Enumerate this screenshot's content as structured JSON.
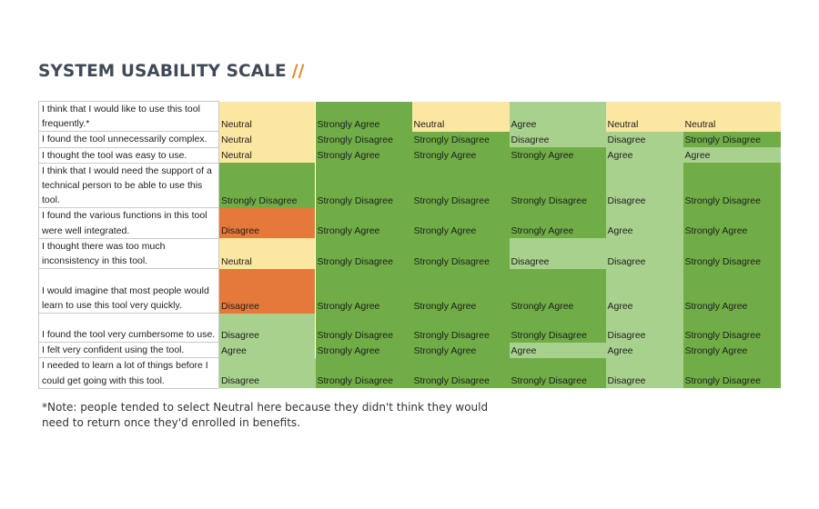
{
  "title": "SYSTEM USABILITY SCALE",
  "title_accent": "//",
  "colors": {
    "Neutral": "#fbe6a2",
    "Strongly Agree": "#70ad47",
    "Agree": "#a9d18e",
    "Strongly Disagree": "#70ad47",
    "Disagree": "#a9d18e",
    "Disagree (highlight)": "#e4793a",
    "accent": "#e8852f"
  },
  "rows": [
    {
      "question": "I think that I would like to use this tool frequently.*",
      "responses": [
        "Neutral",
        "Strongly Agree",
        "Neutral",
        "Agree",
        "Neutral",
        "Neutral"
      ]
    },
    {
      "question": "I found the tool unnecessarily complex.",
      "responses": [
        "Neutral",
        "Strongly Disagree",
        "Strongly Disagree",
        "Disagree",
        "Disagree",
        "Strongly Disagree"
      ]
    },
    {
      "question": "I thought the tool was easy to use.",
      "responses": [
        "Neutral",
        "Strongly Agree",
        "Strongly Agree",
        "Strongly Agree",
        "Agree",
        "Agree"
      ]
    },
    {
      "question": "I think that I would need the support of a technical person to be able to use this tool.",
      "responses": [
        "Strongly Disagree",
        "Strongly Disagree",
        "Strongly Disagree",
        "Strongly Disagree",
        "Disagree",
        "Strongly Disagree"
      ]
    },
    {
      "question": "I found the various functions in this tool were well integrated.",
      "responses": [
        "Disagree",
        "Strongly Agree",
        "Strongly Agree",
        "Strongly Agree",
        "Agree",
        "Strongly Agree"
      ]
    },
    {
      "question": "I thought there was too much inconsistency in this tool.",
      "responses": [
        "Neutral",
        "Strongly Disagree",
        "Strongly Disagree",
        "Disagree",
        "Disagree",
        "Strongly Disagree"
      ]
    },
    {
      "question": "I would imagine that most people would learn to use this tool very quickly.",
      "responses": [
        "Disagree",
        "Strongly Agree",
        "Strongly Agree",
        "Strongly Agree",
        "Agree",
        "Strongly Agree"
      ]
    },
    {
      "question": "I found the tool very cumbersome to use.",
      "responses": [
        "Disagree",
        "Strongly Disagree",
        "Strongly Disagree",
        "Strongly Disagree",
        "Disagree",
        "Strongly Disagree"
      ]
    },
    {
      "question": "I felt very confident using the tool.",
      "responses": [
        "Agree",
        "Strongly Agree",
        "Strongly Agree",
        "Agree",
        "Agree",
        "Strongly Agree"
      ]
    },
    {
      "question": "I needed to learn a lot of things before I could get going with this tool.",
      "responses": [
        "Disagree",
        "Strongly Disagree",
        "Strongly Disagree",
        "Strongly Disagree",
        "Disagree",
        "Strongly Disagree"
      ]
    }
  ],
  "note": "*Note: people tended to select Neutral here because they didn't think they would need to return once they'd enrolled in benefits."
}
